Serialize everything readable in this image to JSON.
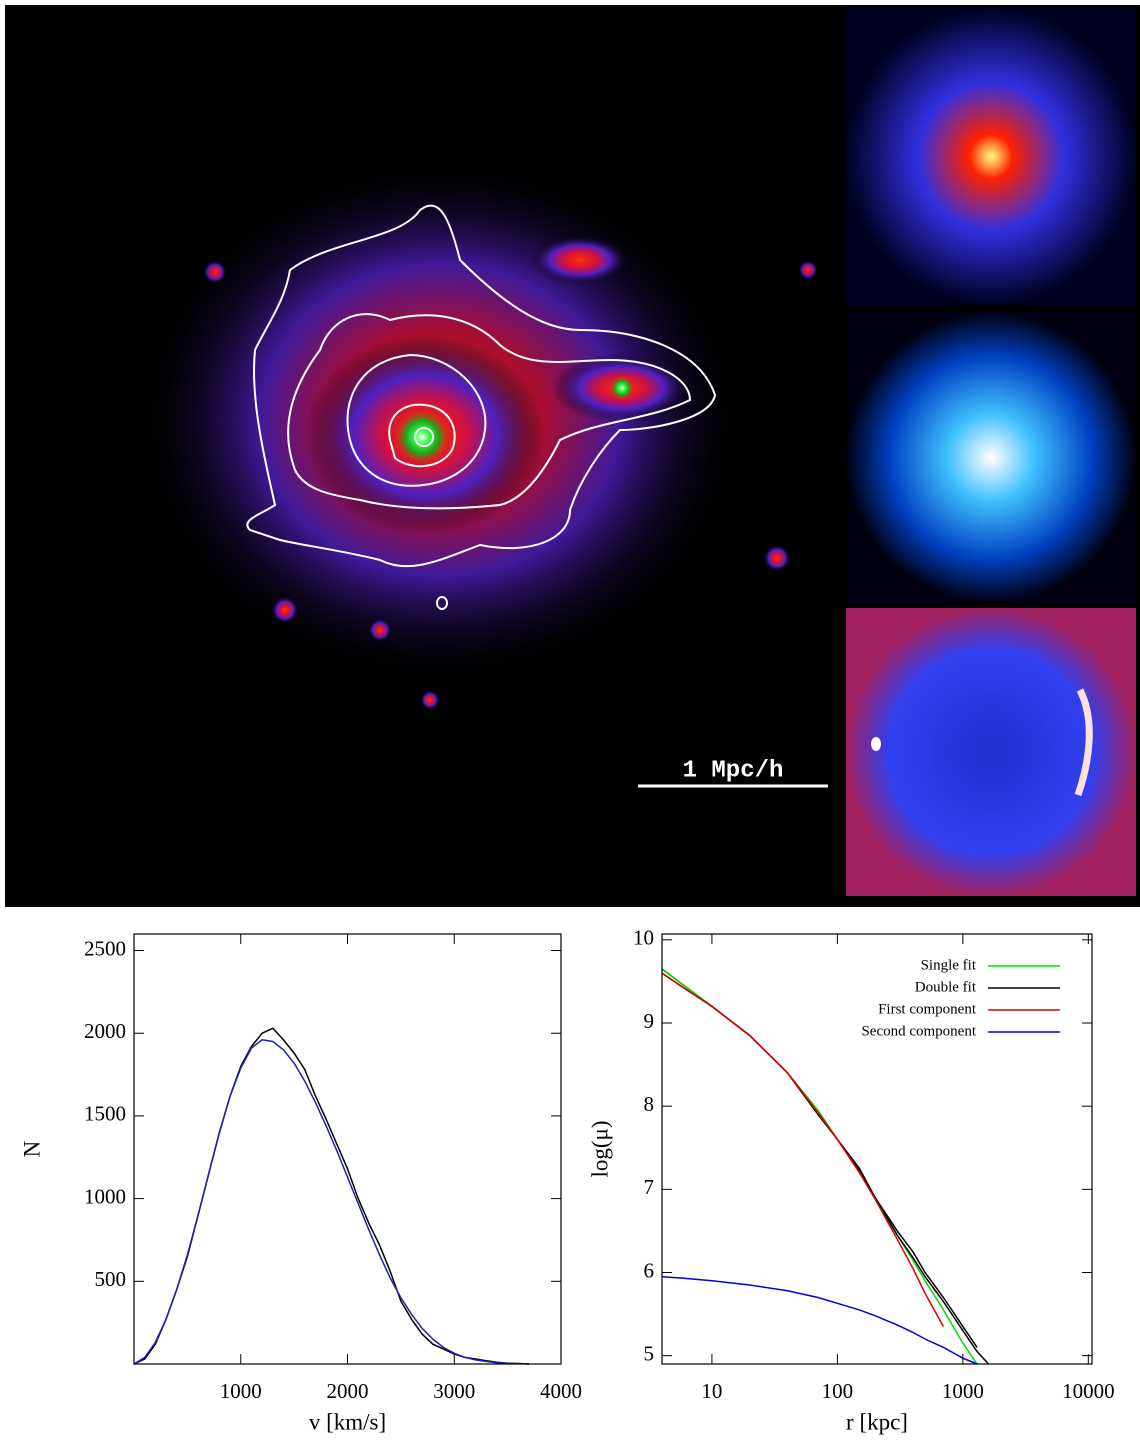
{
  "image_panel": {
    "scale_label": "1 Mpc/h"
  },
  "chart_data": [
    {
      "type": "line",
      "xlabel": "v [km/s]",
      "ylabel": "N",
      "x": [
        0,
        100,
        200,
        300,
        400,
        500,
        600,
        700,
        800,
        900,
        1000,
        1100,
        1200,
        1300,
        1400,
        1500,
        1600,
        1700,
        1800,
        1900,
        2000,
        2100,
        2200,
        2300,
        2400,
        2500,
        2600,
        2700,
        2800,
        2900,
        3000,
        3100,
        3200,
        3300,
        3400,
        3500,
        3600,
        3700
      ],
      "series": [
        {
          "color": "#000000",
          "values": [
            0,
            30,
            120,
            270,
            450,
            650,
            900,
            1150,
            1400,
            1620,
            1800,
            1920,
            2000,
            2030,
            1960,
            1880,
            1780,
            1620,
            1480,
            1330,
            1180,
            1000,
            850,
            720,
            560,
            380,
            270,
            180,
            120,
            90,
            60,
            40,
            30,
            20,
            10,
            5,
            3,
            0
          ]
        },
        {
          "color": "#2020b0",
          "values": [
            0,
            40,
            130,
            270,
            450,
            660,
            900,
            1150,
            1400,
            1620,
            1790,
            1910,
            1960,
            1950,
            1900,
            1820,
            1710,
            1580,
            1440,
            1290,
            1130,
            970,
            810,
            660,
            520,
            400,
            300,
            215,
            150,
            100,
            65,
            40,
            25,
            15,
            8,
            4,
            2,
            1
          ]
        }
      ],
      "xlim": [
        0,
        4000
      ],
      "xticks": [
        1000,
        2000,
        3000,
        4000
      ],
      "ylim": [
        0,
        2600
      ],
      "yticks": [
        500,
        1000,
        1500,
        2000,
        2500
      ]
    },
    {
      "type": "line",
      "xlabel": "r [kpc]",
      "ylabel": "log(μ)",
      "xscale": "log",
      "legend": "upper right",
      "x": [
        4,
        6,
        10,
        20,
        40,
        70,
        100,
        150,
        200,
        300,
        400,
        500,
        700,
        1000,
        1300,
        1600
      ],
      "series": [
        {
          "color": "#000000",
          "values": [
            9.65,
            9.45,
            9.2,
            8.85,
            8.4,
            7.9,
            7.6,
            7.25,
            6.9,
            6.5,
            6.25,
            6.0,
            5.7,
            5.35,
            5.1,
            null
          ]
        },
        {
          "name": "Single fit",
          "color": "#00dd00",
          "values": [
            9.65,
            9.45,
            9.2,
            8.85,
            8.4,
            7.95,
            7.6,
            7.2,
            6.9,
            6.45,
            6.15,
            5.9,
            5.55,
            5.15,
            4.9,
            null
          ]
        },
        {
          "name": "Double fit",
          "color": "#000000",
          "values": [
            9.6,
            9.42,
            9.2,
            8.85,
            8.4,
            7.92,
            7.6,
            7.22,
            6.9,
            6.45,
            6.18,
            5.95,
            5.65,
            5.3,
            5.05,
            4.9
          ]
        },
        {
          "name": "First component",
          "color": "#e00000",
          "values": [
            9.6,
            9.42,
            9.2,
            8.85,
            8.4,
            7.92,
            7.6,
            7.2,
            6.88,
            6.4,
            6.05,
            5.75,
            5.35,
            null,
            null,
            null
          ]
        },
        {
          "name": "Second component",
          "color": "#0000e0",
          "values": [
            5.95,
            5.93,
            5.9,
            5.85,
            5.78,
            5.7,
            5.63,
            5.55,
            5.48,
            5.37,
            5.28,
            5.2,
            5.1,
            4.97,
            4.9,
            null
          ]
        }
      ],
      "xlim": [
        4,
        10700
      ],
      "xticks": [
        10,
        100,
        1000,
        10000
      ],
      "ylim": [
        4.9,
        10.07
      ],
      "yticks": [
        5,
        6,
        7,
        8,
        9,
        10
      ]
    }
  ]
}
